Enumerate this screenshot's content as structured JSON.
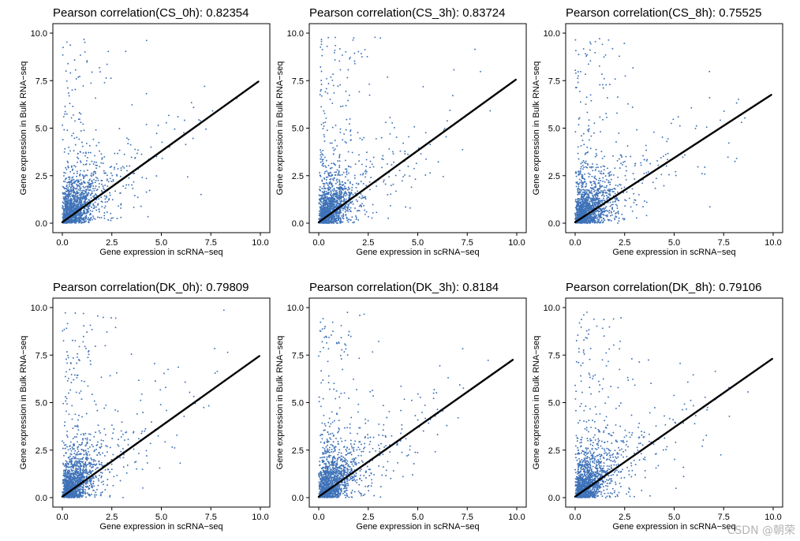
{
  "colors": {
    "points": "#3f72b8",
    "fit_line": "#000000"
  },
  "watermark": "CSDN @朝荣",
  "chart_data": [
    {
      "type": "scatter",
      "title": "Pearson correlation(CS_0h): 0.82354",
      "condition": "CS_0h",
      "pearson_r": 0.82354,
      "xlabel": "Gene expression in scRNA−seq",
      "ylabel": "Gene expression in Bulk RNA−seq",
      "xlim": [
        0,
        10
      ],
      "ylim": [
        0,
        10
      ],
      "xticks": [
        "0.0",
        "2.5",
        "5.0",
        "7.5",
        "10.0"
      ],
      "yticks": [
        "0.0",
        "2.5",
        "5.0",
        "7.5",
        "10.0"
      ],
      "fit_line": {
        "x": [
          0.0,
          9.9
        ],
        "y": [
          0.05,
          7.45
        ]
      },
      "n_points": 1500
    },
    {
      "type": "scatter",
      "title": "Pearson correlation(CS_3h): 0.83724",
      "condition": "CS_3h",
      "pearson_r": 0.83724,
      "xlabel": "Gene expression in scRNA−seq",
      "ylabel": "Gene expression in Bulk RNA−seq",
      "xlim": [
        0,
        10
      ],
      "ylim": [
        0,
        10
      ],
      "xticks": [
        "0.0",
        "2.5",
        "5.0",
        "7.5",
        "10.0"
      ],
      "yticks": [
        "0.0",
        "2.5",
        "5.0",
        "7.5",
        "10.0"
      ],
      "fit_line": {
        "x": [
          0.0,
          9.95
        ],
        "y": [
          0.05,
          7.55
        ]
      },
      "n_points": 1500
    },
    {
      "type": "scatter",
      "title": "Pearson correlation(CS_8h): 0.75525",
      "condition": "CS_8h",
      "pearson_r": 0.75525,
      "xlabel": "Gene expression in scRNA−seq",
      "ylabel": "Gene expression in Bulk RNA−seq",
      "xlim": [
        0,
        10
      ],
      "ylim": [
        0,
        10
      ],
      "xticks": [
        "0.0",
        "2.5",
        "5.0",
        "7.5",
        "10.0"
      ],
      "yticks": [
        "0.0",
        "2.5",
        "5.0",
        "7.5",
        "10.0"
      ],
      "fit_line": {
        "x": [
          0.0,
          9.9
        ],
        "y": [
          0.05,
          6.75
        ]
      },
      "n_points": 1500
    },
    {
      "type": "scatter",
      "title": "Pearson correlation(DK_0h): 0.79809",
      "condition": "DK_0h",
      "pearson_r": 0.79809,
      "xlabel": "Gene expression in scRNA−seq",
      "ylabel": "Gene expression in Bulk RNA−seq",
      "xlim": [
        0,
        10
      ],
      "ylim": [
        0,
        10
      ],
      "xticks": [
        "0.0",
        "2.5",
        "5.0",
        "7.5",
        "10.0"
      ],
      "yticks": [
        "0.0",
        "2.5",
        "5.0",
        "7.5",
        "10.0"
      ],
      "fit_line": {
        "x": [
          0.0,
          9.95
        ],
        "y": [
          0.05,
          7.45
        ]
      },
      "n_points": 1500
    },
    {
      "type": "scatter",
      "title": "Pearson correlation(DK_3h): 0.8184",
      "condition": "DK_3h",
      "pearson_r": 0.8184,
      "xlabel": "Gene expression in scRNA−seq",
      "ylabel": "Gene expression in Bulk RNA−seq",
      "xlim": [
        0,
        10
      ],
      "ylim": [
        0,
        10
      ],
      "xticks": [
        "0.0",
        "2.5",
        "5.0",
        "7.5",
        "10.0"
      ],
      "yticks": [
        "0.0",
        "2.5",
        "5.0",
        "7.5",
        "10.0"
      ],
      "fit_line": {
        "x": [
          0.0,
          9.8
        ],
        "y": [
          0.05,
          7.25
        ]
      },
      "n_points": 1500
    },
    {
      "type": "scatter",
      "title": "Pearson correlation(DK_8h): 0.79106",
      "condition": "DK_8h",
      "pearson_r": 0.79106,
      "xlabel": "Gene expression in scRNA−seq",
      "ylabel": "Gene expression in Bulk RNA−seq",
      "xlim": [
        0,
        10
      ],
      "ylim": [
        0,
        10
      ],
      "xticks": [
        "0.0",
        "2.5",
        "5.0",
        "7.5",
        "10.0"
      ],
      "yticks": [
        "0.0",
        "2.5",
        "5.0",
        "7.5",
        "10.0"
      ],
      "fit_line": {
        "x": [
          0.0,
          9.95
        ],
        "y": [
          0.05,
          7.3
        ]
      },
      "n_points": 1500
    }
  ]
}
